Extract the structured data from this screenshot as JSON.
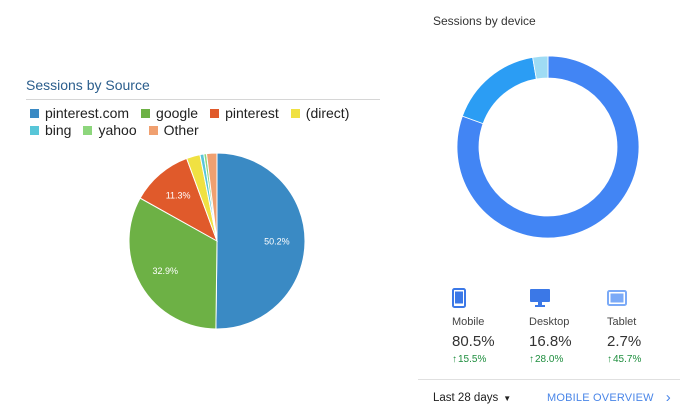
{
  "source_panel": {
    "title": "Sessions by Source"
  },
  "device_panel": {
    "title": "Sessions by device",
    "devices": [
      {
        "label": "Mobile",
        "value": "80.5%",
        "change": "15.5%",
        "icon": "phone-icon"
      },
      {
        "label": "Desktop",
        "value": "16.8%",
        "change": "28.0%",
        "icon": "desktop-icon"
      },
      {
        "label": "Tablet",
        "value": "2.7%",
        "change": "45.7%",
        "icon": "tablet-icon"
      }
    ],
    "date_range": "Last 28 days",
    "overview_link": "MOBILE OVERVIEW"
  },
  "colors": {
    "mobile": "#4285f4",
    "desktop": "#2b9df4",
    "tablet": "#9fdcf4",
    "trend_up": "#1e8e3e",
    "link": "#4a86e8"
  },
  "chart_data": [
    {
      "type": "pie",
      "title": "Sessions by Source",
      "legend_position": "top",
      "series": [
        {
          "name": "pinterest.com",
          "value": 50.2,
          "label": "50.2%",
          "color": "#3a8ac4"
        },
        {
          "name": "google",
          "value": 32.9,
          "label": "32.9%",
          "color": "#6db145"
        },
        {
          "name": "pinterest",
          "value": 11.3,
          "label": "11.3%",
          "color": "#e05a2b"
        },
        {
          "name": "(direct)",
          "value": 2.5,
          "label": "",
          "color": "#f0e142"
        },
        {
          "name": "bing",
          "value": 0.7,
          "label": "",
          "color": "#58c6d8"
        },
        {
          "name": "yahoo",
          "value": 0.5,
          "label": "",
          "color": "#8dd67c"
        },
        {
          "name": "Other",
          "value": 1.9,
          "label": "",
          "color": "#f0a070"
        }
      ]
    },
    {
      "type": "pie",
      "title": "Sessions by device",
      "donut": true,
      "series": [
        {
          "name": "Mobile",
          "value": 80.5,
          "color": "#4285f4"
        },
        {
          "name": "Desktop",
          "value": 16.8,
          "color": "#2b9df4"
        },
        {
          "name": "Tablet",
          "value": 2.7,
          "color": "#9fdcf4"
        }
      ]
    }
  ]
}
